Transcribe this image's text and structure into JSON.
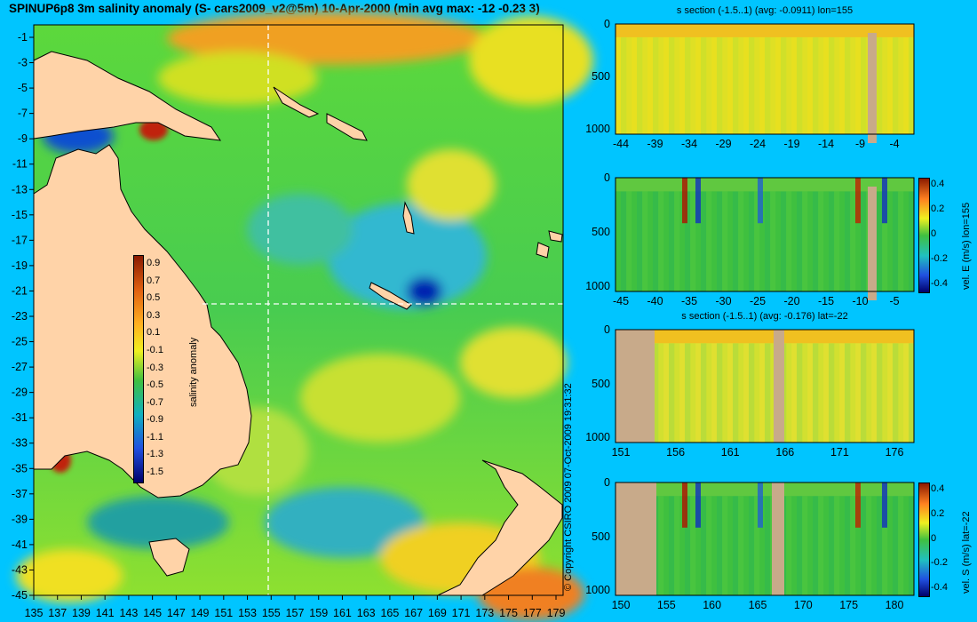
{
  "title": "SPINUP6p8 3m salinity anomaly (S- cars2009_v2@5m) 10-Apr-2000 (min avg max: -12 -0.23 3)",
  "copyright": "© Copyright CSIRO 2009   07-Oct-2009 19:31:32",
  "map": {
    "x_ticks": [
      "135",
      "137",
      "139",
      "141",
      "143",
      "145",
      "147",
      "149",
      "151",
      "153",
      "155",
      "157",
      "159",
      "161",
      "163",
      "165",
      "167",
      "169",
      "171",
      "173",
      "175",
      "177",
      "179"
    ],
    "y_ticks": [
      "-1",
      "-3",
      "-5",
      "-7",
      "-9",
      "-11",
      "-13",
      "-15",
      "-17",
      "-19",
      "-21",
      "-23",
      "-25",
      "-27",
      "-29",
      "-31",
      "-33",
      "-35",
      "-37",
      "-39",
      "-41",
      "-43",
      "-45"
    ],
    "colorbar": {
      "label": "salinity anomaly",
      "ticks": [
        "0.9",
        "0.7",
        "0.5",
        "0.3",
        "0.1",
        "-0.1",
        "-0.3",
        "-0.5",
        "-0.7",
        "-0.9",
        "-1.1",
        "-1.3",
        "-1.5"
      ],
      "range": [
        -1.6,
        1.0
      ]
    },
    "section_lon": 155,
    "section_lat": -22
  },
  "panels": [
    {
      "id": "s-lon",
      "title": "s section (-1.5..1) (avg: -0.0911) lon=155",
      "y_ticks": [
        "0",
        "500",
        "1000"
      ],
      "x_ticks": [
        "-44",
        "-39",
        "-34",
        "-29",
        "-24",
        "-19",
        "-14",
        "-9",
        "-4"
      ],
      "colorbar_label": "",
      "colorbar_ticks": []
    },
    {
      "id": "u-lon",
      "title": "",
      "y_ticks": [
        "0",
        "500",
        "1000"
      ],
      "x_ticks": [
        "-45",
        "-40",
        "-35",
        "-30",
        "-25",
        "-20",
        "-15",
        "-10",
        "-5"
      ],
      "colorbar_label": "vel. E (m/s) lon=155",
      "colorbar_ticks": [
        "0.4",
        "0.2",
        "0",
        "-0.2",
        "-0.4"
      ]
    },
    {
      "id": "s-lat",
      "title": "s section (-1.5..1) (avg: -0.176) lat=-22",
      "y_ticks": [
        "0",
        "500",
        "1000"
      ],
      "x_ticks": [
        "151",
        "156",
        "161",
        "166",
        "171",
        "176"
      ],
      "colorbar_label": "",
      "colorbar_ticks": []
    },
    {
      "id": "v-lat",
      "title": "",
      "y_ticks": [
        "0",
        "500",
        "1000"
      ],
      "x_ticks": [
        "150",
        "155",
        "160",
        "165",
        "170",
        "175",
        "180"
      ],
      "colorbar_label": "vel. S (m/s) lat=-22",
      "colorbar_ticks": [
        "0.4",
        "0.2",
        "0",
        "-0.2",
        "-0.4"
      ]
    }
  ],
  "colors": {
    "background": "#00c5ff",
    "land": "#ffd3a8",
    "section_land": "#c8aa8a",
    "field_mid": "#50d040"
  }
}
